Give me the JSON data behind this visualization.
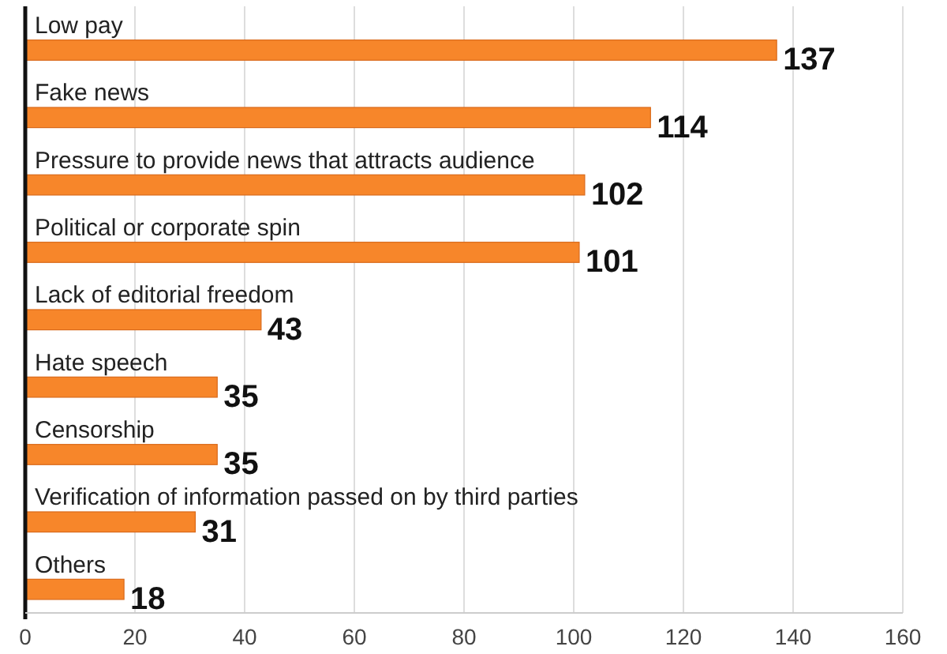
{
  "chart_data": {
    "type": "bar",
    "orientation": "horizontal",
    "categories": [
      "Low pay",
      "Fake news",
      "Pressure to provide news that attracts audience",
      "Political or corporate spin",
      "Lack of editorial freedom",
      "Hate speech",
      "Censorship",
      "Verification of information passed on by third parties",
      "Others"
    ],
    "values": [
      137,
      114,
      102,
      101,
      43,
      35,
      35,
      31,
      18
    ],
    "color": "#f7862a",
    "xlim": [
      0,
      160
    ],
    "xticks": [
      0,
      20,
      40,
      60,
      80,
      100,
      120,
      140,
      160
    ],
    "grid": "x",
    "data_labels": true
  }
}
